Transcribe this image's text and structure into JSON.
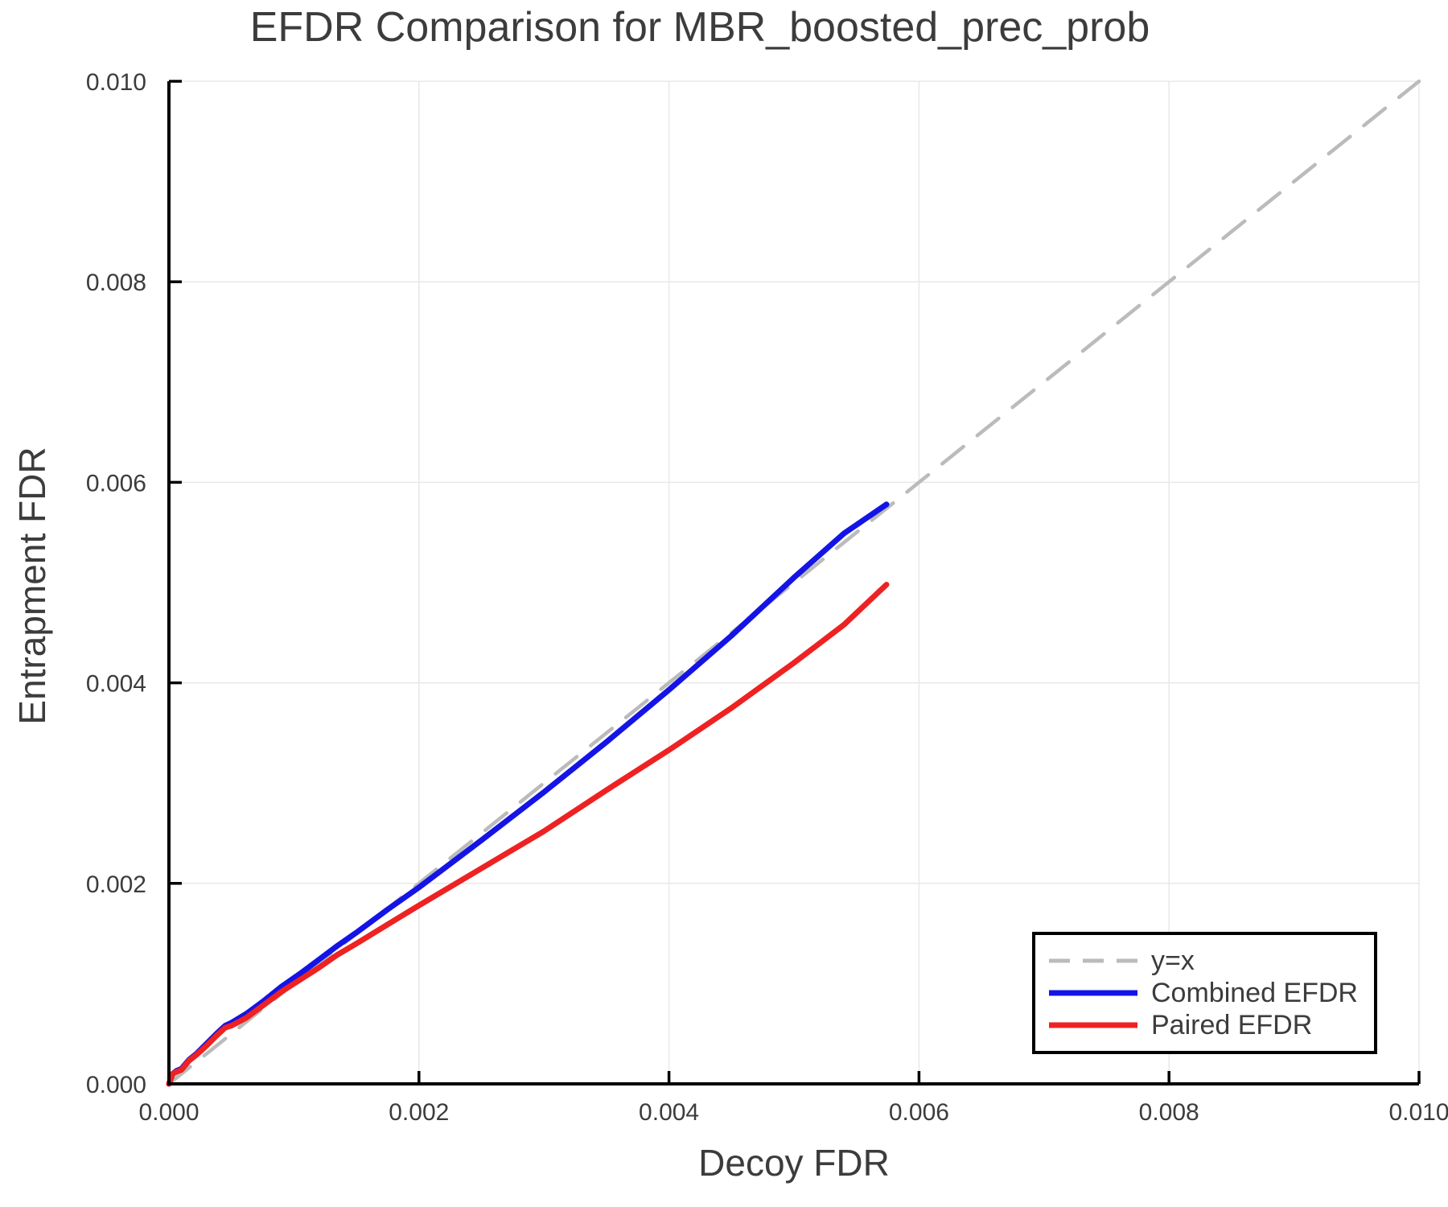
{
  "title": "EFDR Comparison for MBR_boosted_prec_prob",
  "axes": {
    "xlabel": "Decoy FDR",
    "ylabel": "Entrapment FDR",
    "xticks": {
      "values": [
        0.0,
        0.002,
        0.004,
        0.006,
        0.008,
        0.01
      ],
      "labels": [
        "0.000",
        "0.002",
        "0.004",
        "0.006",
        "0.008",
        "0.010"
      ]
    },
    "yticks": {
      "values": [
        0.0,
        0.002,
        0.004,
        0.006,
        0.008,
        0.01
      ],
      "labels": [
        "0.000",
        "0.002",
        "0.004",
        "0.006",
        "0.008",
        "0.010"
      ]
    }
  },
  "colors": {
    "grid": "#e8e8e8",
    "spine": "#000000",
    "tick_label": "#3c3c3c",
    "title": "#3c3c3c"
  },
  "legend": {
    "items": [
      {
        "label": "y=x",
        "color": "#bbbbbb",
        "style": "dashed"
      },
      {
        "label": "Combined EFDR",
        "color": "#1414e6",
        "style": "solid"
      },
      {
        "label": "Paired EFDR",
        "color": "#ee2222",
        "style": "solid"
      }
    ]
  },
  "chart_data": {
    "type": "line",
    "title": "EFDR Comparison for MBR_boosted_prec_prob",
    "xlabel": "Decoy FDR",
    "ylabel": "Entrapment FDR",
    "xlim": [
      0.0,
      0.01
    ],
    "ylim": [
      0.0,
      0.01
    ],
    "grid": true,
    "legend_position": "bottom-right",
    "series": [
      {
        "name": "y=x",
        "color": "#bbbbbb",
        "style": "dashed",
        "x": [
          0.0,
          0.01
        ],
        "y": [
          0.0,
          0.01
        ]
      },
      {
        "name": "Combined EFDR",
        "color": "#1414e6",
        "style": "solid",
        "x": [
          0.0,
          3e-05,
          6e-05,
          0.0001,
          0.00016,
          0.00022,
          0.0003,
          0.00038,
          0.00045,
          0.0005,
          0.00062,
          0.00075,
          0.0009,
          0.00105,
          0.0012,
          0.00135,
          0.0015,
          0.00175,
          0.002,
          0.0025,
          0.003,
          0.0035,
          0.004,
          0.0045,
          0.005,
          0.0054,
          0.00574
        ],
        "y": [
          0.0,
          0.0001,
          0.00013,
          0.00015,
          0.00024,
          0.0003,
          0.0004,
          0.0005,
          0.00058,
          0.00061,
          0.0007,
          0.00082,
          0.00097,
          0.0011,
          0.00124,
          0.00138,
          0.00151,
          0.00174,
          0.00196,
          0.00243,
          0.00291,
          0.00341,
          0.00393,
          0.00447,
          0.00505,
          0.00549,
          0.00578
        ]
      },
      {
        "name": "Paired EFDR",
        "color": "#ee2222",
        "style": "solid",
        "x": [
          0.0,
          3e-05,
          6e-05,
          0.0001,
          0.00016,
          0.00022,
          0.0003,
          0.00038,
          0.00045,
          0.0005,
          0.00062,
          0.00075,
          0.0009,
          0.00105,
          0.0012,
          0.00135,
          0.0015,
          0.00175,
          0.002,
          0.0025,
          0.003,
          0.0035,
          0.004,
          0.0045,
          0.005,
          0.0054,
          0.00574
        ],
        "y": [
          0.0,
          0.0001,
          0.00012,
          0.00014,
          0.00023,
          0.00029,
          0.00038,
          0.00048,
          0.00056,
          0.00058,
          0.00066,
          0.00078,
          0.00092,
          0.00104,
          0.00116,
          0.00129,
          0.0014,
          0.00159,
          0.00178,
          0.00215,
          0.00252,
          0.00293,
          0.00333,
          0.00375,
          0.0042,
          0.00458,
          0.00498
        ]
      }
    ]
  }
}
